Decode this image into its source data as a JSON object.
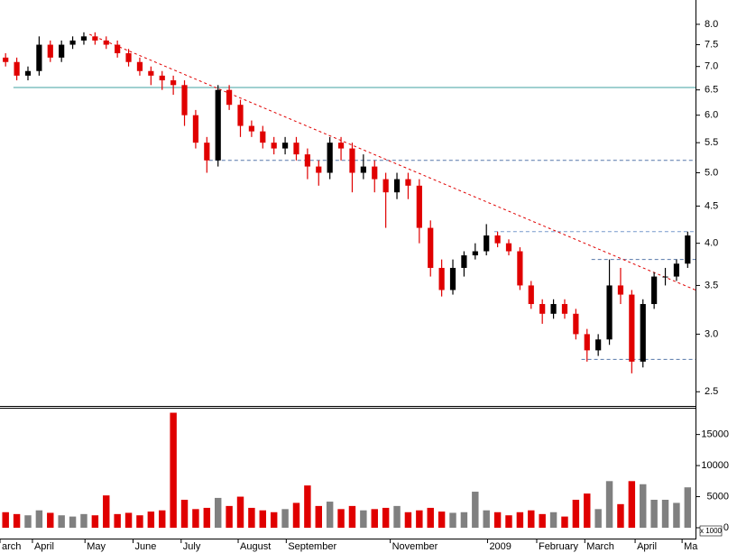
{
  "chart_data": [
    {
      "type": "candlestick",
      "open": [
        7.2,
        7.1,
        6.8,
        6.9,
        7.5,
        7.2,
        7.5,
        7.6,
        7.7,
        7.6,
        7.5,
        7.3,
        7.1,
        6.9,
        6.8,
        6.7,
        6.6,
        6.0,
        5.5,
        5.2,
        6.5,
        6.2,
        5.8,
        5.7,
        5.5,
        5.4,
        5.5,
        5.3,
        5.1,
        5.0,
        5.5,
        5.4,
        5.0,
        5.1,
        4.9,
        4.7,
        4.9,
        4.8,
        4.2,
        3.7,
        3.45,
        3.7,
        3.85,
        3.9,
        4.1,
        4.0,
        3.9,
        3.5,
        3.3,
        3.2,
        3.3,
        3.2,
        3.0,
        2.85,
        2.95,
        3.5,
        3.4,
        2.75,
        3.3,
        3.6,
        3.6,
        3.75
      ],
      "high": [
        7.3,
        7.2,
        7.0,
        7.7,
        7.6,
        7.6,
        7.7,
        7.8,
        7.8,
        7.7,
        7.6,
        7.4,
        7.2,
        7.0,
        6.9,
        6.8,
        6.7,
        6.1,
        5.6,
        6.6,
        6.6,
        6.3,
        5.9,
        5.8,
        5.6,
        5.6,
        5.6,
        5.4,
        5.2,
        5.6,
        5.6,
        5.5,
        5.3,
        5.2,
        5.0,
        5.0,
        5.0,
        4.9,
        4.3,
        3.8,
        3.8,
        3.9,
        4.0,
        4.25,
        4.15,
        4.05,
        3.95,
        3.55,
        3.35,
        3.35,
        3.35,
        3.25,
        3.05,
        3.0,
        3.8,
        3.7,
        3.45,
        3.35,
        3.65,
        3.7,
        3.8,
        4.15
      ],
      "low": [
        7.0,
        6.7,
        6.7,
        6.8,
        7.1,
        7.1,
        7.4,
        7.5,
        7.5,
        7.4,
        7.2,
        7.0,
        6.8,
        6.6,
        6.5,
        6.4,
        5.8,
        5.4,
        5.0,
        5.1,
        6.1,
        5.6,
        5.6,
        5.4,
        5.3,
        5.3,
        5.2,
        4.9,
        4.8,
        4.9,
        5.2,
        4.7,
        4.9,
        4.7,
        4.2,
        4.6,
        4.6,
        4.0,
        3.6,
        3.38,
        3.4,
        3.6,
        3.8,
        3.85,
        3.95,
        3.85,
        3.45,
        3.25,
        3.1,
        3.15,
        3.15,
        2.95,
        2.75,
        2.8,
        2.9,
        3.3,
        2.65,
        2.7,
        3.25,
        3.5,
        3.55,
        3.7
      ],
      "close": [
        7.1,
        6.8,
        6.9,
        7.5,
        7.2,
        7.5,
        7.6,
        7.7,
        7.6,
        7.5,
        7.3,
        7.1,
        6.9,
        6.8,
        6.7,
        6.6,
        6.0,
        5.5,
        5.2,
        6.5,
        6.2,
        5.8,
        5.7,
        5.5,
        5.4,
        5.5,
        5.3,
        5.1,
        5.0,
        5.5,
        5.4,
        5.0,
        5.1,
        4.9,
        4.7,
        4.9,
        4.8,
        4.2,
        3.7,
        3.45,
        3.7,
        3.85,
        3.9,
        4.1,
        4.0,
        3.9,
        3.5,
        3.3,
        3.2,
        3.3,
        3.2,
        3.0,
        2.85,
        2.95,
        3.5,
        3.4,
        2.75,
        3.3,
        3.6,
        3.6,
        3.75,
        4.1
      ],
      "up_color": "#000000",
      "down_color": "#e00000",
      "log_scale": true,
      "ylim": [
        2.39,
        8.64
      ],
      "yticks": [
        2.5,
        {
          "value": 3,
          "label": "3.0"
        },
        3.5,
        {
          "value": 4,
          "label": "4.0"
        },
        4.5,
        {
          "value": 5,
          "label": "5.0"
        },
        5.5,
        {
          "value": 6,
          "label": "6.0"
        },
        6.5,
        {
          "value": 7,
          "label": "7.0"
        },
        7.5,
        {
          "value": 8,
          "label": "8.0"
        }
      ],
      "xlim": [
        -0.5,
        61.7
      ],
      "xticks": [
        {
          "value": -0.5,
          "label": "arch"
        },
        {
          "value": 2.4,
          "label": "April"
        },
        {
          "value": 7.1,
          "label": "May"
        },
        {
          "value": 11.4,
          "label": "June"
        },
        {
          "value": 15.7,
          "label": "July"
        },
        {
          "value": 20.8,
          "label": "August"
        },
        {
          "value": 25.1,
          "label": "September"
        },
        {
          "value": 34.4,
          "label": "November"
        },
        {
          "value": 43.1,
          "label": "2009"
        },
        {
          "value": 47.5,
          "label": "February"
        },
        {
          "value": 51.8,
          "label": "March"
        },
        {
          "value": 56.3,
          "label": "April"
        },
        {
          "value": 60.5,
          "label": "Ma"
        }
      ],
      "levels": [
        {
          "y": 6.55,
          "from": 0.7,
          "color": "#40a0a0",
          "dashed": false
        },
        {
          "y": 5.2,
          "from": 18.2,
          "color": "#5577aa",
          "dashed": true
        },
        {
          "y": 4.15,
          "from": 43.7,
          "color": "#7799cc",
          "dashed": true
        },
        {
          "y": 3.8,
          "from": 52.4,
          "color": "#5577aa",
          "dashed": true
        },
        {
          "y": 2.77,
          "from": 51.5,
          "color": "#5577aa",
          "dashed": true
        }
      ],
      "trendline": {
        "x": [
          7.5,
          61.7
        ],
        "y": [
          7.75,
          3.45
        ],
        "color": "#e00000"
      }
    },
    {
      "type": "bar",
      "values": [
        2500,
        2200,
        2000,
        2800,
        2400,
        2000,
        1800,
        2200,
        2000,
        5200,
        2200,
        2400,
        2000,
        2600,
        2800,
        18500,
        4500,
        3000,
        3200,
        4800,
        3500,
        5000,
        3200,
        2800,
        2500,
        3000,
        4000,
        6800,
        3500,
        4200,
        3000,
        3500,
        2800,
        3000,
        3200,
        3500,
        2500,
        2800,
        3200,
        2600,
        2400,
        2500,
        5800,
        2800,
        2500,
        2000,
        2500,
        2800,
        2200,
        2500,
        1800,
        4500,
        5500,
        3000,
        7500,
        3800,
        7500,
        7000,
        4500,
        4500,
        4000,
        6500
      ],
      "up_color": "#808080",
      "down_color": "#e00000",
      "ylim": [
        0,
        19300
      ],
      "yticks": [
        0,
        5000,
        10000,
        15000
      ],
      "unit_label": "x 1000"
    }
  ]
}
